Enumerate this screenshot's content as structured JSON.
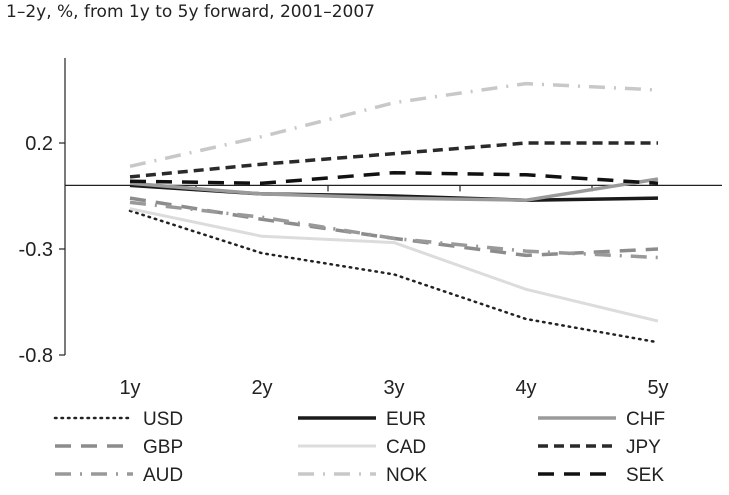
{
  "chart_data": {
    "type": "line",
    "subtitle": "1–2y, %, from 1y to 5y forward, 2001–2007",
    "categories": [
      "1y",
      "2y",
      "3y",
      "4y",
      "5y"
    ],
    "yticks": [
      "0.2",
      "-0.3",
      "-0.8"
    ],
    "ytick_values": [
      0.2,
      -0.3,
      -0.8
    ],
    "ylim": [
      -0.8,
      0.5
    ],
    "grid": false,
    "legend_position": "bottom",
    "series": [
      {
        "name": "USD",
        "values": [
          -0.12,
          -0.32,
          -0.42,
          -0.63,
          -0.74
        ],
        "color": "#222222",
        "dash": "dotted",
        "width": 2.5
      },
      {
        "name": "EUR",
        "values": [
          0.0,
          -0.04,
          -0.05,
          -0.07,
          -0.06
        ],
        "color": "#1a1a1a",
        "dash": "solid",
        "width": 3.5
      },
      {
        "name": "CHF",
        "values": [
          0.01,
          -0.04,
          -0.06,
          -0.07,
          0.03
        ],
        "color": "#9a9a9a",
        "dash": "solid",
        "width": 3.5
      },
      {
        "name": "GBP",
        "values": [
          -0.06,
          -0.16,
          -0.25,
          -0.33,
          -0.3
        ],
        "color": "#8c8c8c",
        "dash": "longdash",
        "width": 3.5
      },
      {
        "name": "CAD",
        "values": [
          -0.11,
          -0.24,
          -0.27,
          -0.49,
          -0.64
        ],
        "color": "#dcdcdc",
        "dash": "solid",
        "width": 3
      },
      {
        "name": "JPY",
        "values": [
          0.04,
          0.1,
          0.15,
          0.2,
          0.2
        ],
        "color": "#2a2a2a",
        "dash": "dashed",
        "width": 3.5
      },
      {
        "name": "AUD",
        "values": [
          -0.08,
          -0.15,
          -0.25,
          -0.31,
          -0.34
        ],
        "color": "#999999",
        "dash": "dashdot",
        "width": 3.5
      },
      {
        "name": "NOK",
        "values": [
          0.09,
          0.23,
          0.39,
          0.48,
          0.45
        ],
        "color": "#c8c8c8",
        "dash": "dashdot",
        "width": 3.5
      },
      {
        "name": "SEK",
        "values": [
          0.02,
          0.01,
          0.06,
          0.05,
          0.01
        ],
        "color": "#111111",
        "dash": "longdash",
        "width": 3.5
      }
    ]
  }
}
